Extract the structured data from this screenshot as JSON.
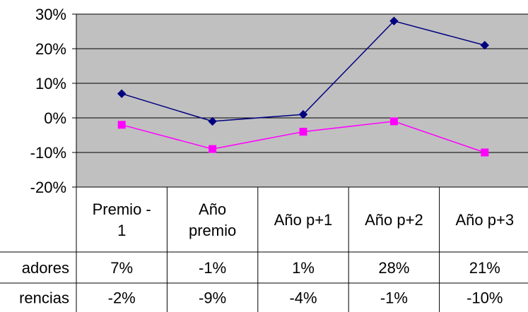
{
  "chart_data": {
    "type": "line",
    "categories": [
      "Premio - 1",
      "Año premio",
      "Año p+1",
      "Año p+2",
      "Año p+3"
    ],
    "series": [
      {
        "name": "adores",
        "values": [
          7,
          -1,
          1,
          28,
          21
        ],
        "labels": [
          "7%",
          "-1%",
          "1%",
          "28%",
          "21%"
        ],
        "color": "#000080",
        "marker": "diamond"
      },
      {
        "name": "rencias",
        "values": [
          -2,
          -9,
          -4,
          -1,
          -10
        ],
        "labels": [
          "-2%",
          "-9%",
          "-4%",
          "-1%",
          "-10%"
        ],
        "color": "#ff00ff",
        "marker": "square"
      }
    ],
    "y_ticks": [
      "30%",
      "20%",
      "10%",
      "0%",
      "-10%",
      "-20%"
    ],
    "ylim": [
      -20,
      30
    ],
    "grid": true,
    "plot_background": "#c0c0c0",
    "legend": "data-table"
  }
}
